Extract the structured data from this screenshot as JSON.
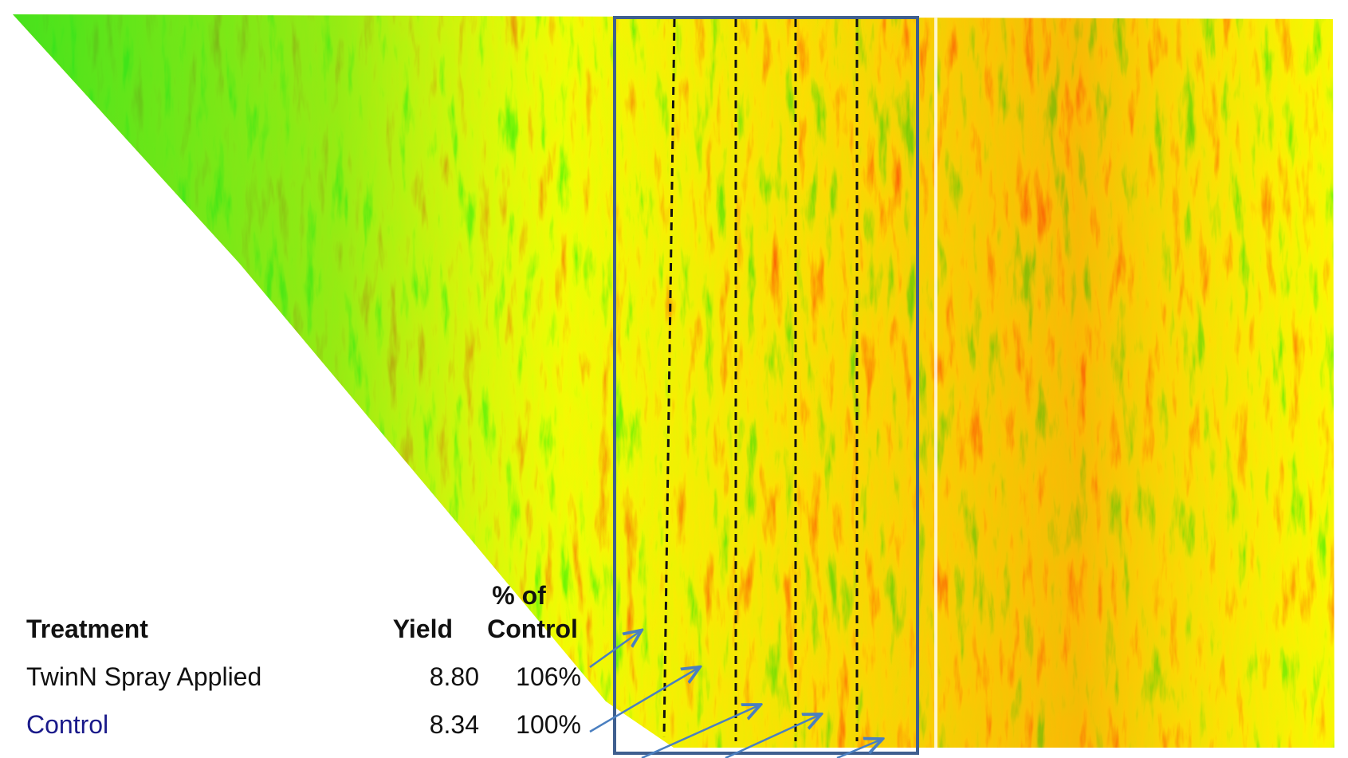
{
  "table": {
    "header": {
      "treatment": "Treatment",
      "yield": "Yield",
      "pct_line1": "% of",
      "pct_line2": "Control"
    },
    "rows": [
      [
        "TwinN Spray Applied",
        "8.80",
        "106%"
      ],
      [
        "Control",
        "8.34",
        "100%"
      ]
    ]
  }
}
